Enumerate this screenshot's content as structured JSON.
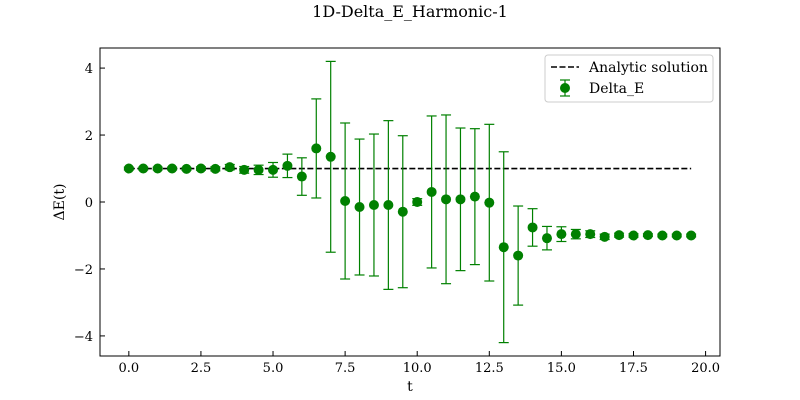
{
  "chart_data": {
    "type": "scatter",
    "title": "1D-Delta_E_Harmonic-1",
    "xlabel": "t",
    "ylabel": "ΔE(t)",
    "xlim": [
      -1,
      20.5
    ],
    "ylim": [
      -4.6,
      4.6
    ],
    "xticks": [
      0,
      2.5,
      5,
      7.5,
      10,
      12.5,
      15,
      17.5,
      20
    ],
    "xtick_labels": [
      "0.0",
      "2.5",
      "5.0",
      "7.5",
      "10.0",
      "12.5",
      "15.0",
      "17.5",
      "20.0"
    ],
    "yticks": [
      -4,
      -2,
      0,
      2,
      4
    ],
    "ytick_labels": [
      "−4",
      "−2",
      "0",
      "2",
      "4"
    ],
    "grid": false,
    "legend_position": "top-right",
    "series": [
      {
        "name": "Analytic solution",
        "kind": "line",
        "style": "dashed",
        "color": "#000000",
        "x": [
          0,
          19.5
        ],
        "y": [
          1,
          1
        ]
      },
      {
        "name": "Delta_E",
        "kind": "errorbar",
        "color": "#008000",
        "points": [
          {
            "x": 0.0,
            "y": 1.0,
            "err": 0.04
          },
          {
            "x": 0.5,
            "y": 1.0,
            "err": 0.04
          },
          {
            "x": 1.0,
            "y": 1.0,
            "err": 0.04
          },
          {
            "x": 1.5,
            "y": 1.0,
            "err": 0.04
          },
          {
            "x": 2.0,
            "y": 0.99,
            "err": 0.04
          },
          {
            "x": 2.5,
            "y": 1.0,
            "err": 0.05
          },
          {
            "x": 3.0,
            "y": 0.99,
            "err": 0.06
          },
          {
            "x": 3.5,
            "y": 1.04,
            "err": 0.08
          },
          {
            "x": 4.0,
            "y": 0.96,
            "err": 0.1
          },
          {
            "x": 4.5,
            "y": 0.96,
            "err": 0.14
          },
          {
            "x": 5.0,
            "y": 0.96,
            "err": 0.22
          },
          {
            "x": 5.5,
            "y": 1.08,
            "err": 0.35
          },
          {
            "x": 6.0,
            "y": 0.76,
            "err": 0.56
          },
          {
            "x": 6.5,
            "y": 1.6,
            "err": 1.48
          },
          {
            "x": 7.0,
            "y": 1.35,
            "err": 2.85
          },
          {
            "x": 7.5,
            "y": 0.03,
            "err": 2.33
          },
          {
            "x": 8.0,
            "y": -0.15,
            "err": 2.03
          },
          {
            "x": 8.5,
            "y": -0.09,
            "err": 2.12
          },
          {
            "x": 9.0,
            "y": -0.09,
            "err": 2.52
          },
          {
            "x": 9.5,
            "y": -0.29,
            "err": 2.27
          },
          {
            "x": 10.0,
            "y": 0.0,
            "err": 0.1
          },
          {
            "x": 10.5,
            "y": 0.3,
            "err": 2.27
          },
          {
            "x": 11.0,
            "y": 0.08,
            "err": 2.52
          },
          {
            "x": 11.5,
            "y": 0.08,
            "err": 2.13
          },
          {
            "x": 12.0,
            "y": 0.16,
            "err": 2.03
          },
          {
            "x": 12.5,
            "y": -0.02,
            "err": 2.34
          },
          {
            "x": 13.0,
            "y": -1.35,
            "err": 2.85
          },
          {
            "x": 13.5,
            "y": -1.6,
            "err": 1.48
          },
          {
            "x": 14.0,
            "y": -0.76,
            "err": 0.56
          },
          {
            "x": 14.5,
            "y": -1.08,
            "err": 0.35
          },
          {
            "x": 15.0,
            "y": -0.96,
            "err": 0.22
          },
          {
            "x": 15.5,
            "y": -0.96,
            "err": 0.14
          },
          {
            "x": 16.0,
            "y": -0.96,
            "err": 0.1
          },
          {
            "x": 16.5,
            "y": -1.04,
            "err": 0.08
          },
          {
            "x": 17.0,
            "y": -0.99,
            "err": 0.06
          },
          {
            "x": 17.5,
            "y": -1.0,
            "err": 0.05
          },
          {
            "x": 18.0,
            "y": -0.99,
            "err": 0.04
          },
          {
            "x": 18.5,
            "y": -1.0,
            "err": 0.04
          },
          {
            "x": 19.0,
            "y": -1.0,
            "err": 0.04
          },
          {
            "x": 19.5,
            "y": -1.0,
            "err": 0.04
          }
        ]
      }
    ]
  }
}
